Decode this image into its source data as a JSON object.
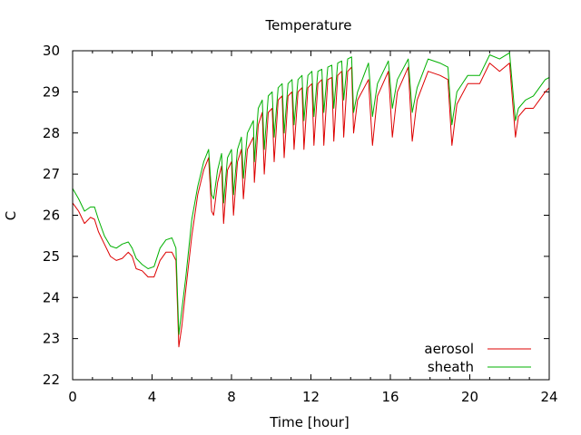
{
  "chart_data": {
    "type": "line",
    "title": "Temperature",
    "xlabel": "Time [hour]",
    "ylabel": "C",
    "xlim": [
      0,
      24
    ],
    "ylim": [
      22,
      30
    ],
    "xticks": [
      0,
      4,
      8,
      12,
      16,
      20,
      24
    ],
    "yticks": [
      22,
      23,
      24,
      25,
      26,
      27,
      28,
      29,
      30
    ],
    "grid": false,
    "legend_position": "bottom-right",
    "series": [
      {
        "name": "aerosol",
        "color": "#dd0000",
        "x": [
          0,
          0.3,
          0.6,
          0.9,
          1.1,
          1.3,
          1.6,
          1.9,
          2.2,
          2.5,
          2.8,
          3.0,
          3.2,
          3.5,
          3.8,
          4.1,
          4.4,
          4.7,
          5.0,
          5.2,
          5.35,
          5.5,
          5.7,
          6.0,
          6.3,
          6.6,
          6.85,
          7.0,
          7.1,
          7.3,
          7.5,
          7.6,
          7.8,
          8.0,
          8.1,
          8.3,
          8.5,
          8.6,
          8.8,
          9.1,
          9.15,
          9.35,
          9.55,
          9.65,
          9.85,
          10.05,
          10.15,
          10.35,
          10.55,
          10.65,
          10.85,
          11.05,
          11.15,
          11.35,
          11.55,
          11.65,
          11.85,
          12.05,
          12.15,
          12.35,
          12.55,
          12.65,
          12.85,
          13.05,
          13.15,
          13.35,
          13.55,
          13.65,
          13.85,
          14.05,
          14.15,
          14.35,
          14.9,
          15.1,
          15.35,
          15.9,
          16.1,
          16.35,
          16.9,
          17.1,
          17.35,
          17.9,
          18.5,
          18.9,
          19.1,
          19.35,
          19.9,
          20.5,
          21.0,
          21.5,
          22.0,
          22.3,
          22.45,
          22.8,
          23.2,
          23.5,
          23.8,
          24.0
        ],
        "y": [
          26.3,
          26.1,
          25.8,
          25.95,
          25.9,
          25.6,
          25.3,
          25.0,
          24.9,
          24.95,
          25.1,
          25.0,
          24.7,
          24.65,
          24.5,
          24.5,
          24.9,
          25.1,
          25.1,
          24.9,
          22.8,
          23.3,
          24.2,
          25.5,
          26.5,
          27.1,
          27.4,
          26.1,
          26.0,
          26.8,
          27.2,
          25.8,
          27.1,
          27.3,
          26.0,
          27.3,
          27.6,
          26.4,
          27.6,
          27.9,
          26.8,
          28.2,
          28.5,
          27.0,
          28.5,
          28.6,
          27.3,
          28.8,
          28.9,
          27.4,
          28.9,
          29.0,
          27.6,
          29.0,
          29.1,
          27.6,
          29.1,
          29.2,
          27.7,
          29.2,
          29.3,
          27.7,
          29.3,
          29.35,
          27.8,
          29.4,
          29.5,
          27.9,
          29.5,
          29.6,
          28.0,
          28.8,
          29.3,
          27.7,
          28.9,
          29.5,
          27.9,
          29.0,
          29.6,
          27.8,
          28.8,
          29.5,
          29.4,
          29.3,
          27.7,
          28.7,
          29.2,
          29.2,
          29.7,
          29.5,
          29.7,
          27.9,
          28.4,
          28.6,
          28.6,
          28.8,
          29.0,
          29.1
        ]
      },
      {
        "name": "sheath",
        "color": "#00b000",
        "x": [
          0,
          0.3,
          0.6,
          0.9,
          1.1,
          1.3,
          1.6,
          1.9,
          2.2,
          2.5,
          2.8,
          3.0,
          3.2,
          3.5,
          3.8,
          4.1,
          4.4,
          4.7,
          5.0,
          5.2,
          5.35,
          5.5,
          5.7,
          6.0,
          6.3,
          6.6,
          6.85,
          7.0,
          7.1,
          7.3,
          7.5,
          7.6,
          7.8,
          8.0,
          8.1,
          8.3,
          8.5,
          8.6,
          8.8,
          9.1,
          9.15,
          9.35,
          9.55,
          9.65,
          9.85,
          10.05,
          10.15,
          10.35,
          10.55,
          10.65,
          10.85,
          11.05,
          11.15,
          11.35,
          11.55,
          11.65,
          11.85,
          12.05,
          12.15,
          12.35,
          12.55,
          12.65,
          12.85,
          13.05,
          13.15,
          13.35,
          13.55,
          13.65,
          13.85,
          14.05,
          14.15,
          14.35,
          14.9,
          15.1,
          15.35,
          15.9,
          16.1,
          16.35,
          16.9,
          17.1,
          17.35,
          17.9,
          18.5,
          18.9,
          19.1,
          19.35,
          19.9,
          20.5,
          21.0,
          21.5,
          22.0,
          22.3,
          22.45,
          22.8,
          23.2,
          23.5,
          23.8,
          24.0
        ],
        "y": [
          26.65,
          26.4,
          26.1,
          26.2,
          26.2,
          25.9,
          25.5,
          25.25,
          25.2,
          25.3,
          25.35,
          25.2,
          24.95,
          24.8,
          24.7,
          24.75,
          25.2,
          25.4,
          25.45,
          25.2,
          23.1,
          23.7,
          24.5,
          25.9,
          26.7,
          27.3,
          27.6,
          26.5,
          26.4,
          27.1,
          27.5,
          26.3,
          27.4,
          27.6,
          26.5,
          27.6,
          27.9,
          26.9,
          28.0,
          28.3,
          27.3,
          28.6,
          28.8,
          27.6,
          28.9,
          29.0,
          27.9,
          29.1,
          29.2,
          28.0,
          29.2,
          29.3,
          28.2,
          29.3,
          29.4,
          28.3,
          29.4,
          29.5,
          28.4,
          29.5,
          29.55,
          28.5,
          29.6,
          29.65,
          28.6,
          29.7,
          29.75,
          28.8,
          29.8,
          29.85,
          28.5,
          29.0,
          29.7,
          28.4,
          29.2,
          29.75,
          28.6,
          29.3,
          29.8,
          28.5,
          29.1,
          29.8,
          29.7,
          29.6,
          28.2,
          29.0,
          29.4,
          29.4,
          29.9,
          29.8,
          29.95,
          28.3,
          28.6,
          28.8,
          28.9,
          29.1,
          29.3,
          29.35
        ]
      }
    ]
  }
}
